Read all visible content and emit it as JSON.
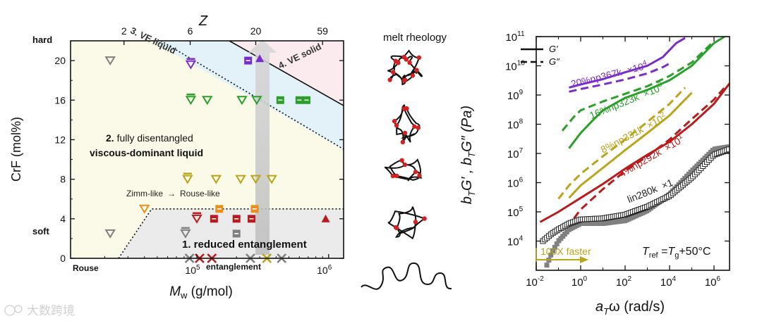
{
  "chart_data": [
    {
      "type": "scatter",
      "title": "",
      "xlabel_main": "M",
      "xlabel_sub": "w",
      "xlabel_unit": " (g/mol)",
      "ylabel": "CrF (mol%)",
      "top_axis_label": "Z",
      "xscale": "log",
      "xlim": [
        11000,
        1300000
      ],
      "ylim": [
        0,
        22
      ],
      "x_ticks": [
        {
          "value": 100000,
          "base": "10",
          "exp": "5"
        },
        {
          "value": 1000000,
          "base": "10",
          "exp": "6"
        }
      ],
      "y_ticks": [
        0,
        4,
        8,
        12,
        16,
        20
      ],
      "y_side_labels": {
        "hard": "hard",
        "soft": "soft"
      },
      "top_ticks": [
        {
          "value": 28000,
          "label": "2"
        },
        {
          "value": 89000,
          "label": "6"
        },
        {
          "value": 280000,
          "label": "20"
        },
        {
          "value": 900000,
          "label": "59"
        }
      ],
      "bottom_labels": {
        "rouse": "Rouse",
        "entanglement": "entanglement"
      },
      "regions": [
        {
          "id": "r1",
          "number": "1.",
          "text": " reduced entanglement",
          "color": "#ebebeb"
        },
        {
          "id": "r2",
          "number": "2.",
          "text": " fully disentangled",
          "text2": "viscous-dominant  liquid",
          "color": "#fbfae8"
        },
        {
          "id": "r3",
          "label": "3. VE liquid",
          "color": "#e3f1f8"
        },
        {
          "id": "r4",
          "label": "4. VE solid",
          "color": "#fbebef"
        }
      ],
      "annotation": {
        "left": "Zimm-like",
        "arrow": "→",
        "right": "Rouse-like"
      },
      "arrow_color": "#c8c8c8",
      "points": [
        {
          "x": 22000,
          "y": 20,
          "marker": "tri-open",
          "color": "#808080"
        },
        {
          "x": 90000,
          "y": 19.6,
          "marker": "tri-dash",
          "color": "#7a2ec9"
        },
        {
          "x": 245000,
          "y": 20,
          "marker": "sq-dash",
          "color": "#7a2ec9"
        },
        {
          "x": 300000,
          "y": 20.2,
          "marker": "tri-fill",
          "color": "#7a2ec9"
        },
        {
          "x": 90000,
          "y": 16,
          "marker": "tri-dash",
          "color": "#2aa02a"
        },
        {
          "x": 120000,
          "y": 16,
          "marker": "tri-open",
          "color": "#2aa02a"
        },
        {
          "x": 220000,
          "y": 16,
          "marker": "tri-open",
          "color": "#2aa02a"
        },
        {
          "x": 285000,
          "y": 16,
          "marker": "tri-open",
          "color": "#2aa02a"
        },
        {
          "x": 430000,
          "y": 16,
          "marker": "sq-dash",
          "color": "#2aa02a"
        },
        {
          "x": 600000,
          "y": 16,
          "marker": "sq-dash",
          "color": "#2aa02a"
        },
        {
          "x": 680000,
          "y": 16,
          "marker": "sq-dash",
          "color": "#2aa02a"
        },
        {
          "x": 85000,
          "y": 8,
          "marker": "tri-dash",
          "color": "#b9a41a"
        },
        {
          "x": 140000,
          "y": 8,
          "marker": "tri-open",
          "color": "#b9a41a"
        },
        {
          "x": 215000,
          "y": 8,
          "marker": "tri-open",
          "color": "#b9a41a"
        },
        {
          "x": 280000,
          "y": 8,
          "marker": "tri-open",
          "color": "#b9a41a"
        },
        {
          "x": 370000,
          "y": 8,
          "marker": "tri-open",
          "color": "#b9a41a"
        },
        {
          "x": 40000,
          "y": 5,
          "marker": "tri-open",
          "color": "#e8901f"
        },
        {
          "x": 148000,
          "y": 5,
          "marker": "sq-dash",
          "color": "#e8901f"
        },
        {
          "x": 275000,
          "y": 5,
          "marker": "sq-dash",
          "color": "#e8901f"
        },
        {
          "x": 100000,
          "y": 4,
          "marker": "tri-dash",
          "color": "#b81c1c"
        },
        {
          "x": 135000,
          "y": 4,
          "marker": "sq-dash",
          "color": "#b81c1c"
        },
        {
          "x": 200000,
          "y": 4,
          "marker": "sq-dash",
          "color": "#b81c1c"
        },
        {
          "x": 260000,
          "y": 4,
          "marker": "sq-dash",
          "color": "#b81c1c"
        },
        {
          "x": 950000,
          "y": 4,
          "marker": "tri-fill",
          "color": "#b81c1c"
        },
        {
          "x": 22000,
          "y": 2.5,
          "marker": "tri-open",
          "color": "#808080"
        },
        {
          "x": 82000,
          "y": 2.5,
          "marker": "tri-dash",
          "color": "#808080"
        },
        {
          "x": 200000,
          "y": 2.5,
          "marker": "sq-dash",
          "color": "#808080"
        },
        {
          "x": 88000,
          "y": 0,
          "marker": "x",
          "color": "#808080"
        },
        {
          "x": 105000,
          "y": 0,
          "marker": "x",
          "color": "#b81c1c"
        },
        {
          "x": 130000,
          "y": 0,
          "marker": "x",
          "color": "#b81c1c"
        },
        {
          "x": 255000,
          "y": 0,
          "marker": "x",
          "color": "#808080"
        },
        {
          "x": 340000,
          "y": 0,
          "marker": "x",
          "color": "#b9a41a"
        },
        {
          "x": 440000,
          "y": 0,
          "marker": "x",
          "color": "#808080"
        }
      ]
    },
    {
      "type": "line",
      "title": "",
      "xlabel_pre": "a",
      "xlabel_sub": "T",
      "xlabel_post": "ω (rad/s)",
      "ylabel_text": "b_T G′, b_T G″ (Pa)",
      "ylabel_parts": [
        "b",
        "T",
        "G′ , b",
        "T",
        "G″ (Pa)"
      ],
      "xscale": "log",
      "yscale": "log",
      "xlim": [
        0.01,
        5000000
      ],
      "ylim": [
        1000,
        100000000000
      ],
      "x_ticks": [
        {
          "v": 0.01,
          "base": "10",
          "exp": "-2"
        },
        {
          "v": 1,
          "base": "10",
          "exp": "0"
        },
        {
          "v": 100,
          "base": "10",
          "exp": "2"
        },
        {
          "v": 10000,
          "base": "10",
          "exp": "4"
        },
        {
          "v": 1000000,
          "base": "10",
          "exp": "6"
        }
      ],
      "y_ticks": [
        {
          "v": 10000,
          "base": "10",
          "exp": "4"
        },
        {
          "v": 100000,
          "base": "10",
          "exp": "5"
        },
        {
          "v": 1000000,
          "base": "10",
          "exp": "6"
        },
        {
          "v": 10000000,
          "base": "10",
          "exp": "7"
        },
        {
          "v": 100000000,
          "base": "10",
          "exp": "8"
        },
        {
          "v": 1000000000,
          "base": "10",
          "exp": "9"
        },
        {
          "v": 10000000000,
          "base": "10",
          "exp": "10"
        },
        {
          "v": 100000000000,
          "base": "10",
          "exp": "11"
        }
      ],
      "legend": {
        "solid": "G′",
        "dashed": "G″",
        "position": "top-left"
      },
      "reference": {
        "pre": "T",
        "sub": "ref",
        "eq": " =",
        "t": "T",
        "g": "g",
        "post": "+50°C"
      },
      "shift_annotation": {
        "text": "100X faster",
        "color": "#b9a41a"
      },
      "series": [
        {
          "name": "20%np367k",
          "factor": "×10",
          "factor_exp": "4",
          "color": "#7a2ec9",
          "label_at": {
            "x": 0.4,
            "y": 1800000000
          },
          "Gp": [
            [
              0.3,
              1800000000
            ],
            [
              1,
              2300000000
            ],
            [
              10,
              3500000000
            ],
            [
              100,
              6000000000
            ],
            [
              1000,
              10000000000
            ],
            [
              5000,
              20000000000
            ],
            [
              20000,
              60000000000
            ],
            [
              50000,
              90000000000
            ]
          ],
          "Gpp": [
            [
              0.3,
              1300000000
            ],
            [
              1,
              1600000000
            ],
            [
              10,
              2300000000
            ],
            [
              100,
              3400000000
            ],
            [
              1000,
              5500000000
            ],
            [
              5000,
              9000000000
            ],
            [
              10000,
              12000000000
            ]
          ]
        },
        {
          "name": "16%np323k",
          "factor": "×10",
          "factor_exp": "3",
          "color": "#2aa02a",
          "label_at": {
            "x": 3,
            "y": 150000000
          },
          "Gp": [
            [
              0.3,
              15000000
            ],
            [
              1,
              50000000
            ],
            [
              3,
              120000000
            ],
            [
              10,
              300000000
            ],
            [
              100,
              800000000
            ],
            [
              1000,
              1500000000
            ],
            [
              10000,
              3200000000
            ],
            [
              100000,
              10000000000
            ],
            [
              1000000,
              60000000000
            ],
            [
              3000000,
              100000000000
            ]
          ],
          "Gpp": [
            [
              0.15,
              60000000
            ],
            [
              0.5,
              180000000
            ],
            [
              1,
              300000000
            ],
            [
              10,
              600000000
            ],
            [
              100,
              1100000000
            ],
            [
              1000,
              2000000000
            ],
            [
              10000,
              4500000000
            ],
            [
              100000,
              13000000000
            ],
            [
              1000000,
              70000000000
            ]
          ]
        },
        {
          "name": "8%np331k",
          "factor": "×10",
          "factor_exp": "2",
          "color": "#b9a41a",
          "label_at": {
            "x": 10,
            "y": 10000000
          },
          "Gp": [
            [
              0.3,
              300000
            ],
            [
              1,
              800000
            ],
            [
              10,
              3200000
            ],
            [
              100,
              13000000
            ],
            [
              1000,
              50000000
            ],
            [
              10000,
              200000000
            ],
            [
              100000,
              1200000000
            ]
          ],
          "Gpp": [
            [
              0.1,
              280000
            ],
            [
              0.3,
              800000
            ],
            [
              1,
              2000000
            ],
            [
              10,
              8000000
            ],
            [
              100,
              30000000
            ],
            [
              1000,
              120000000
            ],
            [
              10000,
              500000000
            ],
            [
              50000,
              1800000000
            ]
          ]
        },
        {
          "name": "4%np292k",
          "factor": "×10",
          "factor_exp": "1",
          "color": "#b81c1c",
          "label_at": {
            "x": 70,
            "y": 1500000
          },
          "Gp": [
            [
              0.015,
              45000
            ],
            [
              0.1,
              100000
            ],
            [
              1,
              300000
            ],
            [
              10,
              900000
            ],
            [
              100,
              3000000
            ],
            [
              1000,
              9000000
            ],
            [
              10000,
              25000000
            ],
            [
              100000,
              100000000
            ],
            [
              1000000,
              500000000
            ],
            [
              5000000,
              2500000000
            ]
          ],
          "Gpp": [
            [
              0.5,
              60000
            ],
            [
              1,
              120000
            ],
            [
              10,
              600000
            ],
            [
              100,
              2500000
            ],
            [
              1000,
              8000000
            ],
            [
              10000,
              30000000
            ],
            [
              100000,
              150000000
            ],
            [
              1000000,
              700000000
            ],
            [
              3000000,
              1800000000
            ]
          ]
        },
        {
          "name": "lin280k",
          "factor": "×1",
          "factor_exp": "",
          "color": "#808080",
          "label_at": {
            "x": 150,
            "y": 200000
          },
          "Gp": [
            [
              0.03,
              1500
            ],
            [
              0.05,
              4000
            ],
            [
              0.1,
              10000
            ],
            [
              0.3,
              25000
            ],
            [
              1,
              40000
            ],
            [
              10,
              40000
            ],
            [
              100,
              50000
            ],
            [
              1000,
              110000
            ],
            [
              10000,
              400000
            ],
            [
              100000,
              2500000
            ],
            [
              1000000,
              14000000
            ],
            [
              5000000,
              17000000
            ]
          ],
          "Gpp": [
            [
              0.02,
              10000
            ],
            [
              0.05,
              18000
            ],
            [
              0.1,
              25000
            ],
            [
              0.3,
              40000
            ],
            [
              1,
              55000
            ],
            [
              10,
              60000
            ],
            [
              100,
              80000
            ],
            [
              1000,
              150000
            ],
            [
              10000,
              350000
            ],
            [
              100000,
              1500000
            ],
            [
              1000000,
              9000000
            ],
            [
              5000000,
              14000000
            ]
          ]
        }
      ]
    }
  ],
  "middle_panel": {
    "title": "melt rheology",
    "chain_color": "#111111",
    "crosslink_color": "#d42020"
  },
  "watermark": {
    "brand": "大数跨境"
  }
}
